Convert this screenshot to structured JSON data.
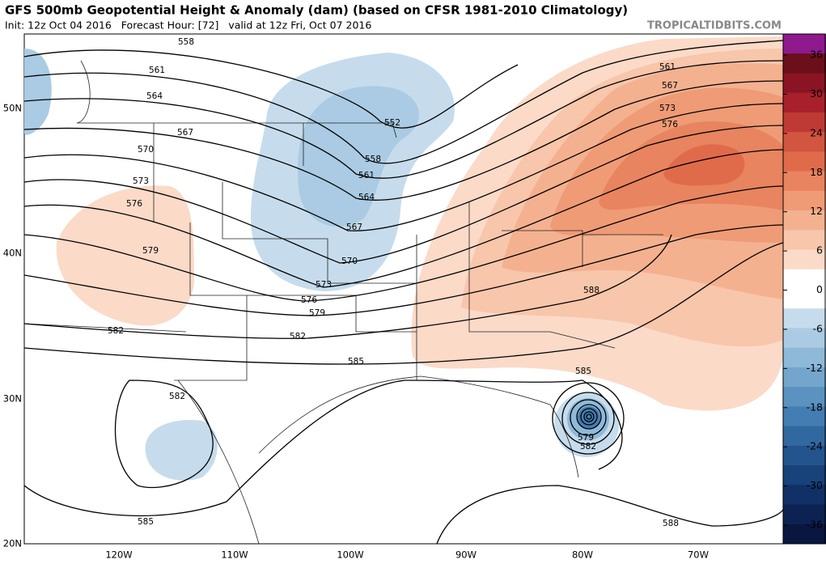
{
  "header": {
    "title": "GFS 500mb Geopotential Height & Anomaly (dam) (based on CFSR 1981-2010 Climatology)",
    "subtitle": "Init: 12z Oct 04 2016   Forecast Hour: [72]   valid at 12z Fri, Oct 07 2016",
    "site": "TROPICALTIDBITS.COM"
  },
  "map": {
    "lat_labels": [
      "50N",
      "40N",
      "30N",
      "20N"
    ],
    "lon_labels": [
      "120W",
      "110W",
      "100W",
      "90W",
      "80W",
      "70W"
    ],
    "contour_labels": [
      "558",
      "561",
      "564",
      "567",
      "570",
      "573",
      "576",
      "579",
      "582",
      "582",
      "585",
      "552",
      "558",
      "561",
      "564",
      "567",
      "570",
      "573",
      "576",
      "579",
      "582",
      "585",
      "561",
      "567",
      "573",
      "576",
      "588",
      "585",
      "579",
      "582",
      "588"
    ]
  },
  "colorbar": {
    "ticks": [
      36,
      30,
      24,
      18,
      12,
      6,
      0,
      -6,
      -12,
      -18,
      -24,
      -30,
      -36
    ],
    "colors": [
      "#8e1a8e",
      "#6b0f1a",
      "#8a1424",
      "#a8202b",
      "#bf3a34",
      "#d2553f",
      "#e06b4b",
      "#e8845f",
      "#ef9b76",
      "#f4b190",
      "#f8c6ab",
      "#fbdac8",
      "#ffffff",
      "#ffffff",
      "#c6dcec",
      "#aacbe3",
      "#8fb9d9",
      "#74a6cd",
      "#5b92c0",
      "#447db1",
      "#3268a0",
      "#23548d",
      "#19417a",
      "#113066",
      "#0c2252",
      "#081640"
    ]
  }
}
